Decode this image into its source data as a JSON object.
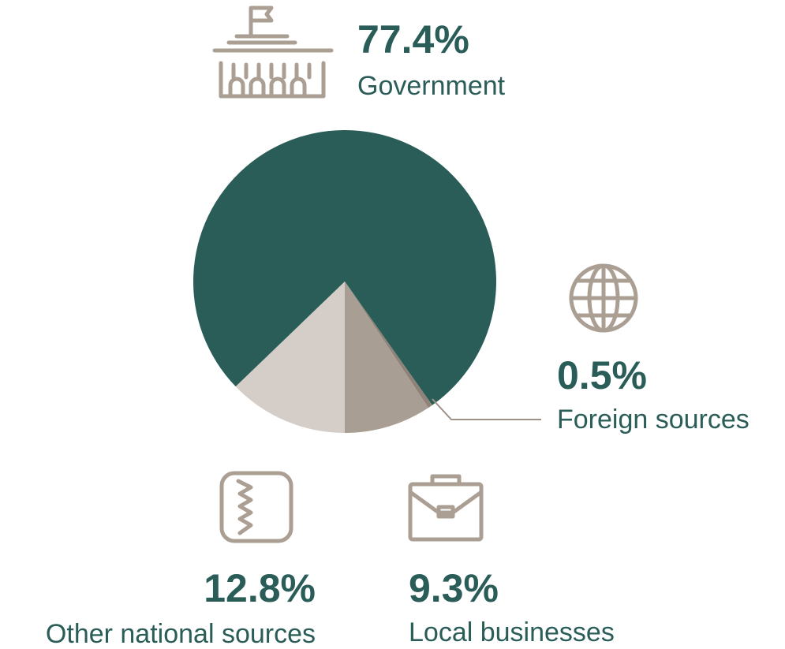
{
  "chart_data": {
    "type": "pie",
    "categories": [
      "Other national sources",
      "Government",
      "Foreign sources",
      "Local businesses"
    ],
    "values": [
      12.8,
      77.4,
      0.5,
      9.3
    ],
    "value_labels": [
      "12.8%",
      "77.4%",
      "0.5%",
      "9.3%"
    ],
    "colors": [
      "#d5cec8",
      "#2a5d58",
      "#8f8379",
      "#a89e94"
    ]
  }
}
